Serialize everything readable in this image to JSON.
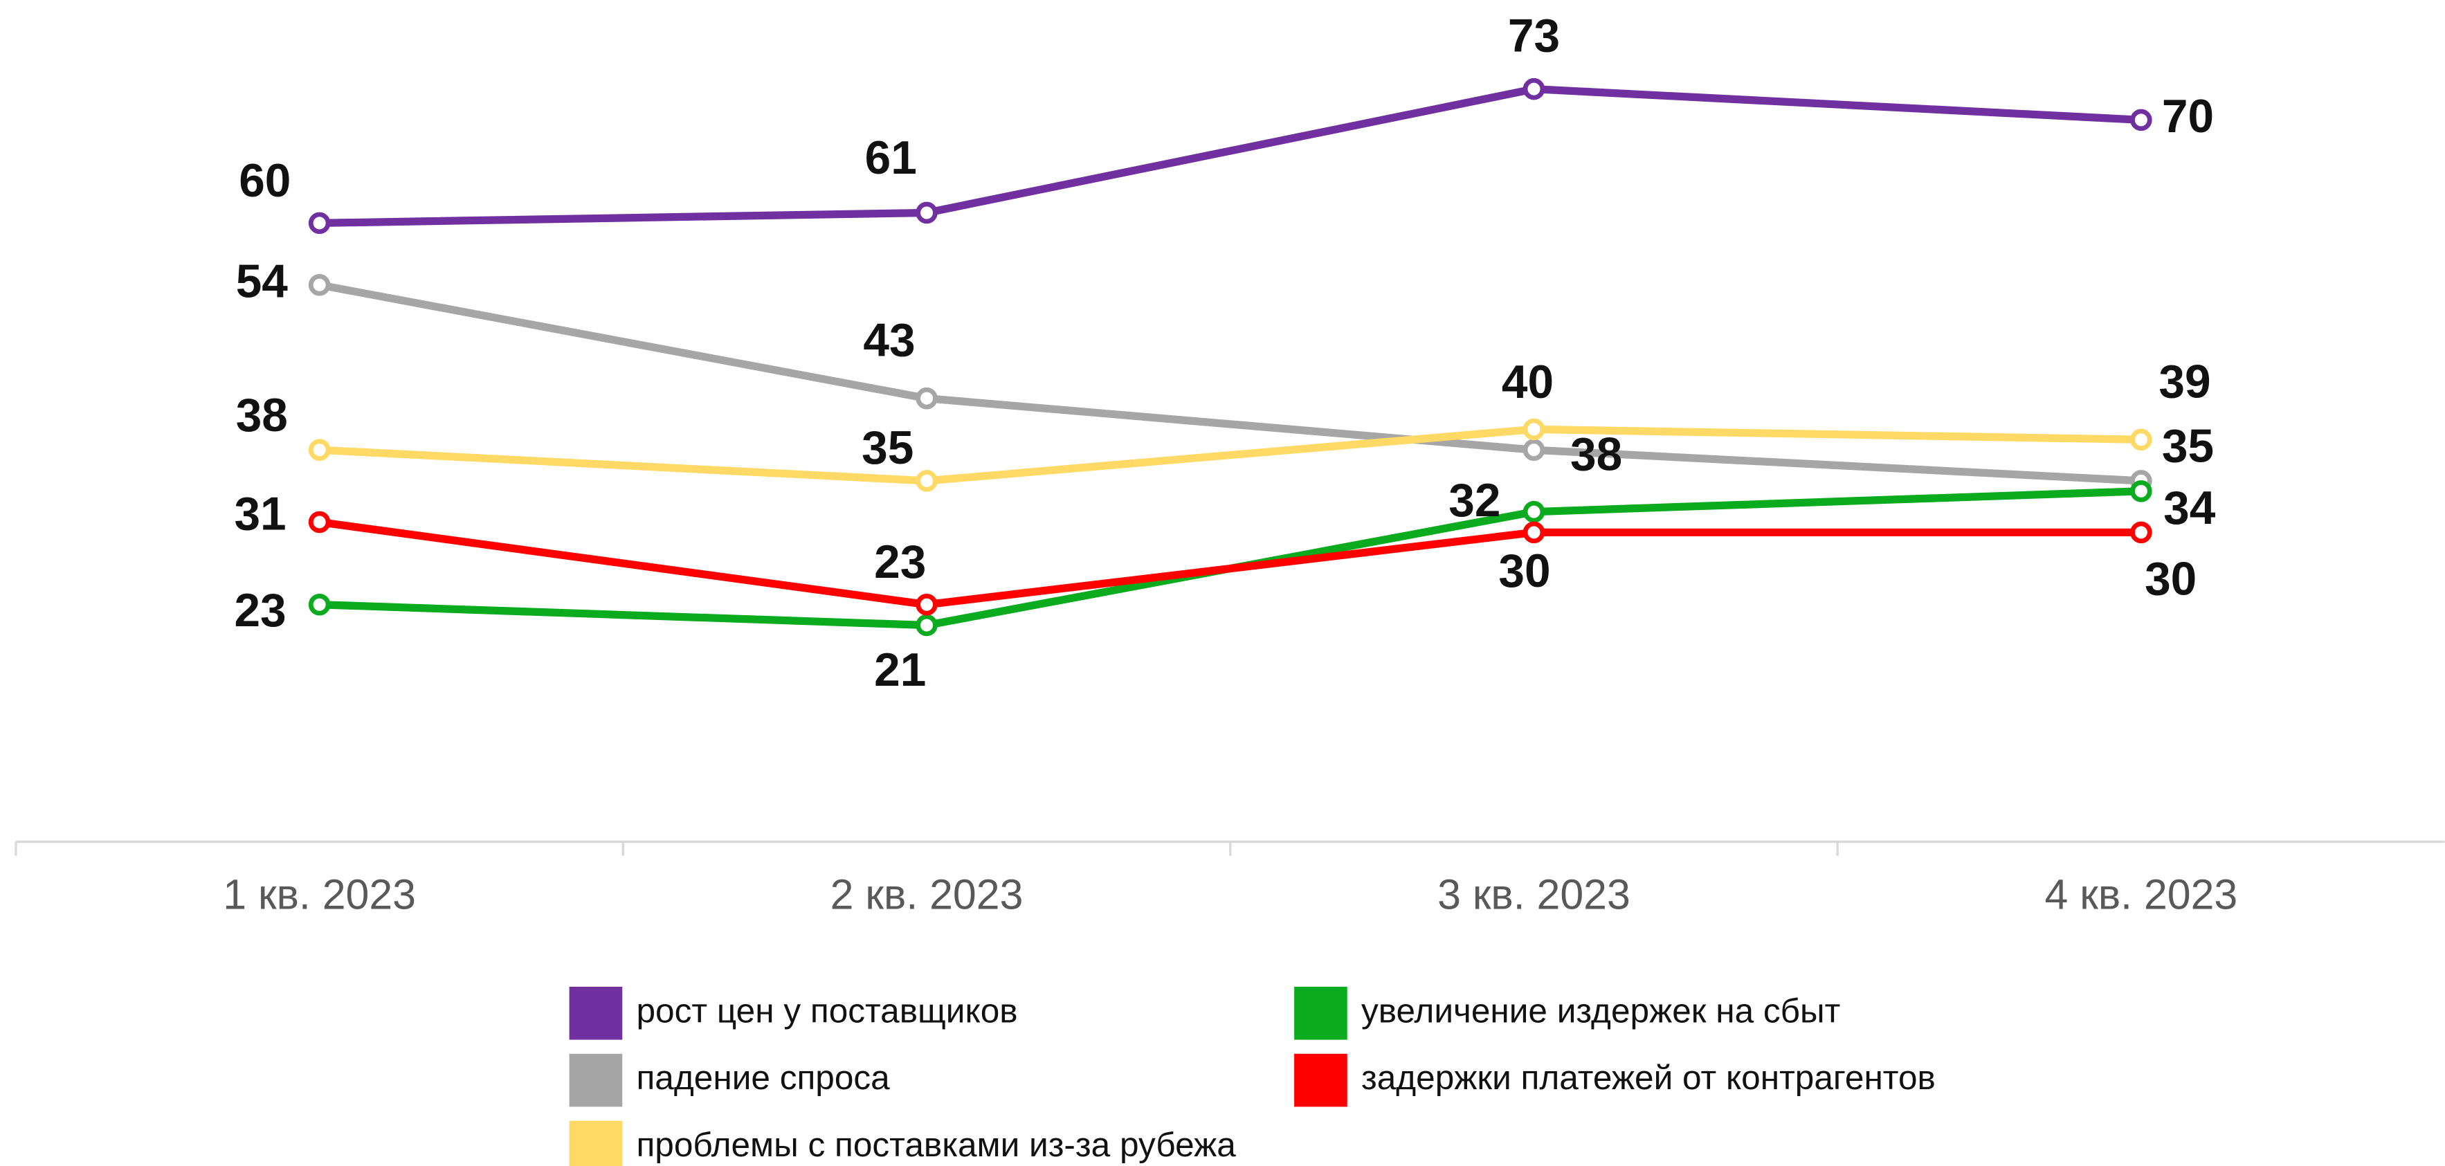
{
  "chart_data": {
    "type": "line",
    "categories": [
      "1 кв. 2023",
      "2 кв. 2023",
      "3 кв. 2023",
      "4 кв. 2023"
    ],
    "series": [
      {
        "name": "рост цен у поставщиков",
        "color": "#7030a0",
        "values": [
          60,
          61,
          73,
          70
        ]
      },
      {
        "name": "падение спроса",
        "color": "#a6a6a6",
        "values": [
          54,
          43,
          38,
          35
        ]
      },
      {
        "name": "проблемы с поставками из-за рубежа",
        "color": "#ffd966",
        "values": [
          38,
          35,
          40,
          39
        ]
      },
      {
        "name": "увеличение издержек на сбыт",
        "color": "#0aab1e",
        "values": [
          23,
          21,
          32,
          34
        ]
      },
      {
        "name": "задержки платежей от контрагентов",
        "color": "#ff0000",
        "values": [
          31,
          23,
          30,
          30
        ]
      }
    ],
    "ylim": [
      0,
      80
    ]
  }
}
